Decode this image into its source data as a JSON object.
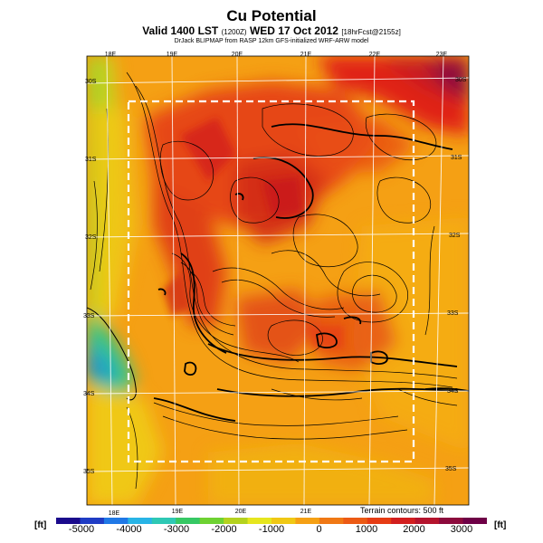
{
  "header": {
    "title": "Cu Potential",
    "subtitle_main": "Valid 1400 LST",
    "subtitle_code": "(1200Z)",
    "subtitle_date": "WED 17 Oct 2012",
    "subtitle_fcst": "[18hrFcst@2155z]",
    "credit": "DrJack BLIPMAP from RASP 12km GFS-initialized WRF-ARW model"
  },
  "map": {
    "lon_labels_top": [
      "18E",
      "19E",
      "20E",
      "21E",
      "22E",
      "23E"
    ],
    "lon_labels_bottom": [
      "18E",
      "19E",
      "20E",
      "21E"
    ],
    "lat_labels_left": [
      "30S",
      "31S",
      "32S",
      "33S",
      "34S",
      "35S"
    ],
    "lat_labels_right": [
      "30S",
      "31S",
      "32S",
      "33S",
      "34S",
      "35S"
    ],
    "terrain_note": "Terrain contours: 500 ft"
  },
  "legend": {
    "unit_left": "[ft]",
    "unit_right": "[ft]",
    "labels": [
      "-5000",
      "-4000",
      "-3000",
      "-2000",
      "-1000",
      "0",
      "1000",
      "2000",
      "3000"
    ],
    "colors": [
      "#1a0a8c",
      "#1f3cc4",
      "#1f78e6",
      "#28b4e6",
      "#2ec8b4",
      "#36c864",
      "#6ed232",
      "#b4d21e",
      "#e6e61e",
      "#f0c814",
      "#f5a014",
      "#f07814",
      "#ec5a14",
      "#e63c14",
      "#d21e1e",
      "#b4142d",
      "#8c0a3c",
      "#6e0046"
    ]
  }
}
